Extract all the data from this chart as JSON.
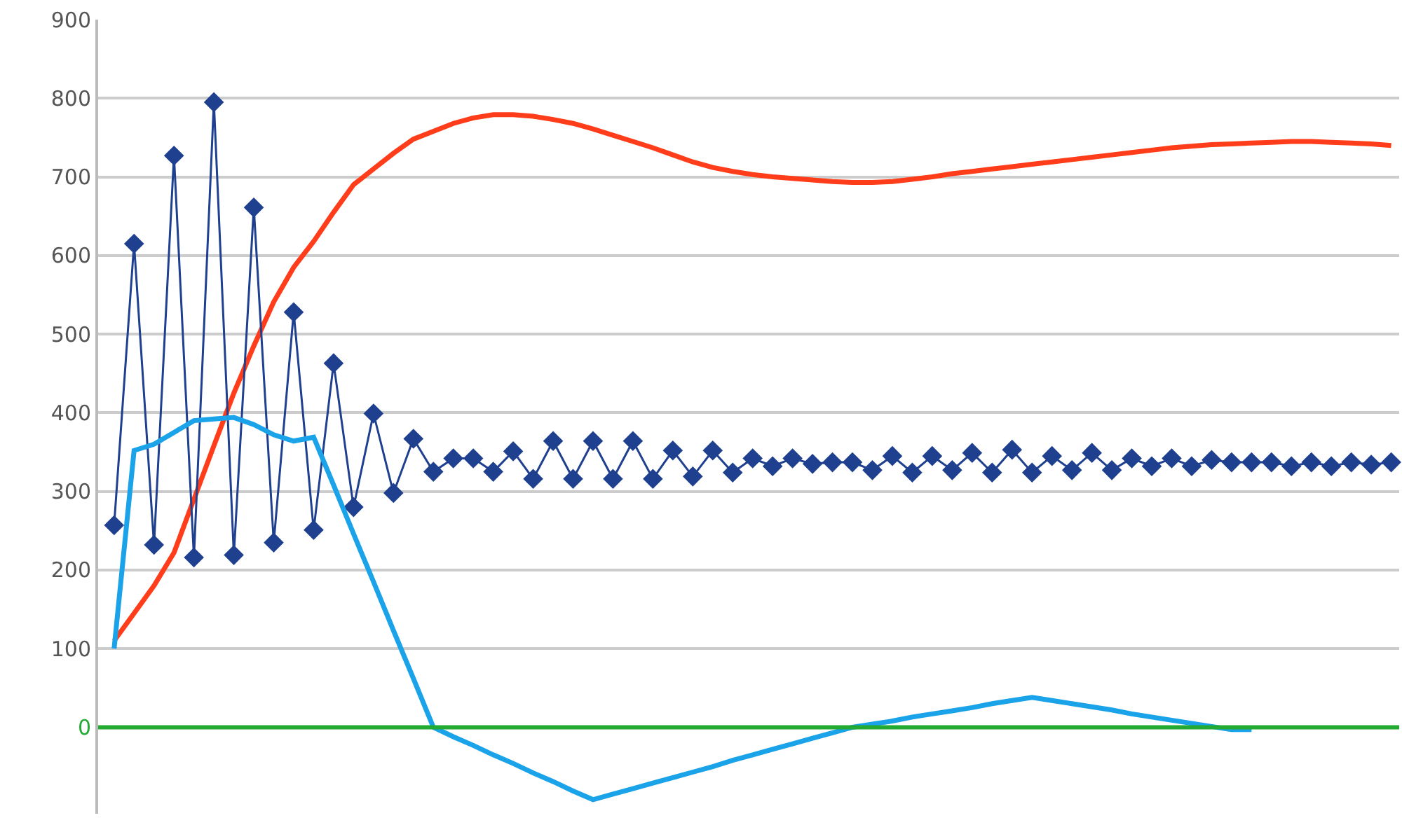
{
  "chart_data": {
    "type": "line",
    "tick_labels": "y",
    "grid": "y",
    "categories": [
      null,
      null,
      null,
      null,
      null,
      null,
      null,
      null,
      null,
      null,
      null,
      null,
      null,
      null,
      null,
      null,
      null,
      null,
      null,
      null,
      null,
      null,
      null,
      null,
      null,
      null,
      null,
      null,
      null,
      null,
      null,
      null,
      null,
      null,
      null,
      null,
      null,
      null,
      null,
      null,
      null,
      null,
      null,
      null,
      null,
      null,
      null,
      null,
      null,
      null,
      null,
      null,
      null,
      null,
      null,
      null,
      null,
      null,
      null,
      null,
      null,
      null,
      null,
      null,
      null
    ],
    "ylim": [
      -110,
      900
    ],
    "yticks": [
      0,
      100,
      200,
      300,
      400,
      500,
      600,
      700,
      800,
      900
    ],
    "ref_lines": [
      {
        "axis": "y",
        "value": 0,
        "color": "#22aa33"
      }
    ],
    "series": [
      {
        "color": "#ff3d1a",
        "marker": "none",
        "values": [
          110,
          145,
          180,
          222,
          290,
          358,
          425,
          485,
          541,
          585,
          618,
          655,
          690,
          710,
          730,
          748,
          758,
          768,
          775,
          779,
          779,
          777,
          773,
          768,
          761,
          753,
          745,
          737,
          728,
          719,
          712,
          707,
          703,
          700,
          698,
          696,
          694,
          693,
          693,
          694,
          697,
          700,
          704,
          707,
          710,
          713,
          716,
          719,
          722,
          725,
          728,
          731,
          734,
          737,
          739,
          741,
          742,
          743,
          744,
          745,
          745,
          744,
          743,
          742,
          740
        ]
      },
      {
        "color": "#1f3f8f",
        "marker": "diamond",
        "values": [
          257,
          615,
          232,
          727,
          216,
          795,
          219,
          661,
          235,
          528,
          251,
          463,
          280,
          399,
          298,
          367,
          325,
          342,
          342,
          325,
          351,
          316,
          364,
          316,
          364,
          316,
          364,
          316,
          352,
          319,
          352,
          324,
          342,
          332,
          342,
          335,
          337,
          337,
          327,
          345,
          324,
          345,
          327,
          349,
          324,
          353,
          324,
          345,
          327,
          349,
          327,
          342,
          332,
          342,
          332,
          340,
          337,
          337,
          337,
          332,
          337,
          332,
          337,
          334,
          337
        ]
      },
      {
        "color": "#1aa3e8",
        "marker": "none",
        "values": [
          100,
          352,
          360,
          375,
          390,
          392,
          394,
          385,
          372,
          364,
          369,
          308,
          246,
          185,
          123,
          62,
          0,
          -12,
          -23,
          -35,
          -46,
          -58,
          -69,
          -81,
          -92,
          -85,
          -78,
          -71,
          -64,
          -57,
          -50,
          -42,
          -35,
          -28,
          -21,
          -14,
          -7,
          0,
          4,
          8,
          13,
          17,
          21,
          25,
          30,
          34,
          38,
          34,
          30,
          26,
          22,
          17,
          13,
          9,
          5,
          1,
          -3,
          -3,
          null,
          null,
          null,
          null,
          null,
          null,
          null
        ]
      }
    ]
  }
}
